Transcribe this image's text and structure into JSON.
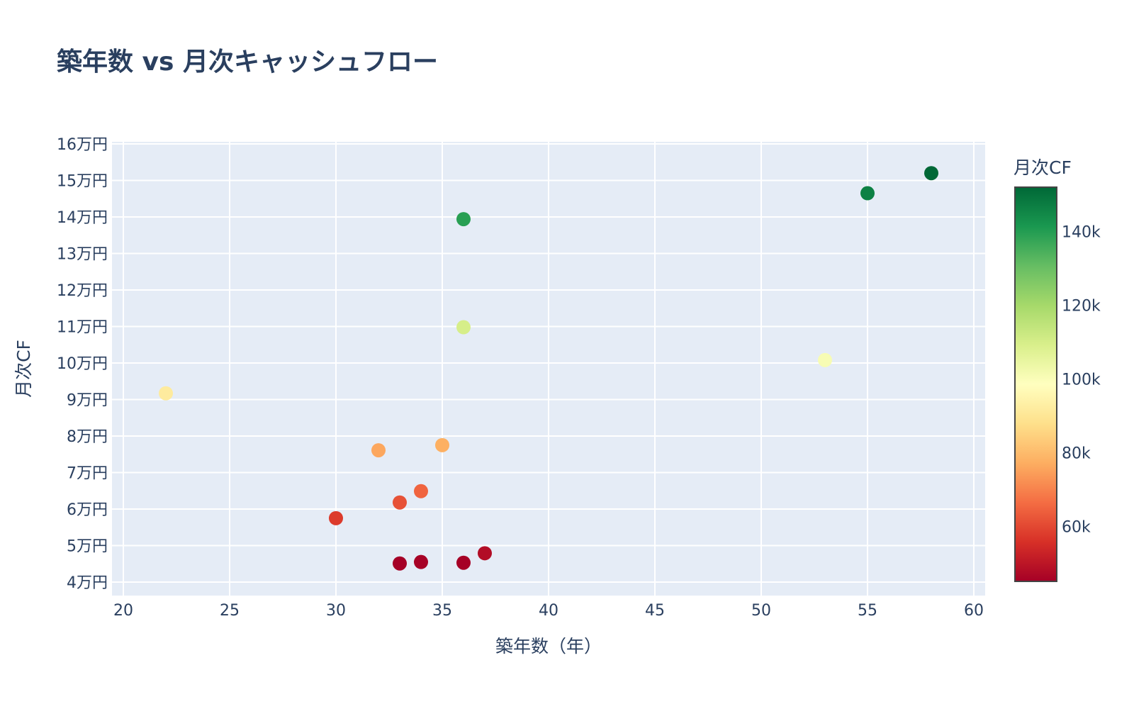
{
  "title": "築年数 vs 月次キャッシュフロー",
  "chart_data": {
    "type": "scatter",
    "title": "築年数 vs 月次キャッシュフロー",
    "xlabel": "築年数（年）",
    "ylabel": "月次CF",
    "xlim": [
      19.5,
      60.5
    ],
    "ylim": [
      36500,
      161000
    ],
    "x_ticks": [
      20,
      25,
      30,
      35,
      40,
      45,
      50,
      55,
      60
    ],
    "x_tick_labels": [
      "20",
      "25",
      "30",
      "35",
      "40",
      "45",
      "50",
      "55",
      "60"
    ],
    "y_ticks": [
      40000,
      50000,
      60000,
      70000,
      80000,
      90000,
      100000,
      110000,
      120000,
      130000,
      140000,
      150000,
      160000
    ],
    "y_tick_labels": [
      "4万円",
      "5万円",
      "6万円",
      "7万円",
      "8万円",
      "9万円",
      "10万円",
      "11万円",
      "12万円",
      "13万円",
      "14万円",
      "15万円",
      "16万円"
    ],
    "grid": true,
    "colorscale": "RdYlGn",
    "colorbar": {
      "title": "月次CF",
      "range": [
        45100,
        152000
      ],
      "ticks": [
        60000,
        80000,
        100000,
        120000,
        140000
      ],
      "tick_labels": [
        "60k",
        "80k",
        "100k",
        "120k",
        "140k"
      ]
    },
    "points": [
      {
        "x": 22,
        "y": 91700
      },
      {
        "x": 30,
        "y": 57500
      },
      {
        "x": 32,
        "y": 76100
      },
      {
        "x": 33,
        "y": 61800
      },
      {
        "x": 33,
        "y": 45100
      },
      {
        "x": 34,
        "y": 64900
      },
      {
        "x": 34,
        "y": 45500
      },
      {
        "x": 35,
        "y": 77500
      },
      {
        "x": 36,
        "y": 139400
      },
      {
        "x": 36,
        "y": 109800
      },
      {
        "x": 36,
        "y": 45300
      },
      {
        "x": 37,
        "y": 47900
      },
      {
        "x": 53,
        "y": 100800
      },
      {
        "x": 55,
        "y": 146500
      },
      {
        "x": 58,
        "y": 152000
      }
    ]
  },
  "colors": {
    "plot_bg": "#e5ecf6",
    "grid": "#ffffff",
    "text": "#2a3f5f"
  }
}
